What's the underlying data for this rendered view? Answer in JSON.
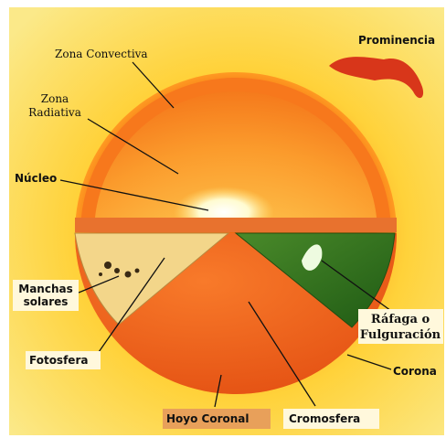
{
  "title_labels": {
    "prominencia": [
      "Prominencia"
    ],
    "zona_convectiva": [
      "Zona Convectiva"
    ],
    "zona_radiativa": [
      "Zona",
      "Radiativa"
    ],
    "nucleo": [
      "Núcleo"
    ],
    "manchas_solares": [
      "Manchas",
      "solares"
    ],
    "fotosfera": [
      "Fotosfera"
    ],
    "rafaga": [
      "Ráfaga o",
      "Fulguración"
    ],
    "corona": [
      "Corona"
    ],
    "hoyo_coronal": [
      "Hoyo Coronal"
    ],
    "cromosfera": [
      "Cromosfera"
    ]
  }
}
